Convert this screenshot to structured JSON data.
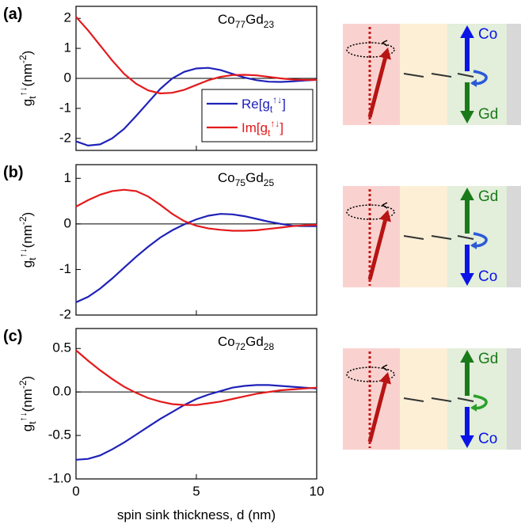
{
  "chart_data": [
    {
      "type": "line",
      "panel": "(a)",
      "annotation": [
        {
          "text": "Co"
        },
        {
          "text": "77",
          "style": "sub"
        },
        {
          "text": "Gd"
        },
        {
          "text": "23",
          "style": "sub"
        }
      ],
      "ylabel": [
        {
          "text": "g"
        },
        {
          "text": "t",
          "style": "sub"
        },
        {
          "text": "↑↓",
          "style": "sup"
        },
        {
          "text": "(nm"
        },
        {
          "text": "-2",
          "style": "sup"
        },
        {
          "text": ")"
        }
      ],
      "xlim": [
        0,
        10
      ],
      "xticks": [
        0,
        5,
        10
      ],
      "show_xtick_labels": false,
      "ylim": [
        -2.4,
        2.4
      ],
      "yticks": [
        -2,
        -1,
        0,
        1,
        2
      ],
      "legend": true,
      "x": [
        0,
        0.5,
        1,
        1.5,
        2,
        2.5,
        3,
        3.5,
        4,
        4.5,
        5,
        5.5,
        6,
        6.5,
        7,
        7.5,
        8,
        8.5,
        9,
        9.5,
        10
      ],
      "series": [
        {
          "name": [
            {
              "text": "Re[g"
            },
            {
              "text": "t",
              "style": "sub"
            },
            {
              "text": "↑↓",
              "style": "sup"
            },
            {
              "text": "]"
            }
          ],
          "color": "#1f22b8",
          "values": [
            -2.1,
            -2.24,
            -2.2,
            -2.0,
            -1.68,
            -1.25,
            -0.8,
            -0.35,
            0.0,
            0.22,
            0.33,
            0.35,
            0.28,
            0.15,
            0.03,
            -0.06,
            -0.11,
            -0.12,
            -0.1,
            -0.07,
            -0.05
          ]
        },
        {
          "name": [
            {
              "text": "Im[g"
            },
            {
              "text": "t",
              "style": "sub"
            },
            {
              "text": "↑↓",
              "style": "sup"
            },
            {
              "text": "]"
            }
          ],
          "color": "#e31a1c",
          "values": [
            2.05,
            1.6,
            1.1,
            0.6,
            0.15,
            -0.18,
            -0.4,
            -0.5,
            -0.48,
            -0.38,
            -0.22,
            -0.06,
            0.05,
            0.11,
            0.12,
            0.1,
            0.05,
            0.0,
            -0.04,
            -0.05,
            -0.05
          ]
        }
      ]
    },
    {
      "type": "line",
      "panel": "(b)",
      "annotation": [
        {
          "text": "Co"
        },
        {
          "text": "75",
          "style": "sub"
        },
        {
          "text": "Gd"
        },
        {
          "text": "25",
          "style": "sub"
        }
      ],
      "ylabel": [
        {
          "text": "g"
        },
        {
          "text": "t",
          "style": "sub"
        },
        {
          "text": "↑↓",
          "style": "sup"
        },
        {
          "text": "(nm"
        },
        {
          "text": "-2",
          "style": "sup"
        },
        {
          "text": ")"
        }
      ],
      "xlim": [
        0,
        10
      ],
      "xticks": [
        0,
        5,
        10
      ],
      "show_xtick_labels": false,
      "ylim": [
        -2,
        1.3
      ],
      "yticks": [
        -2,
        -1,
        0,
        1
      ],
      "legend": false,
      "x": [
        0,
        0.5,
        1,
        1.5,
        2,
        2.5,
        3,
        3.5,
        4,
        4.5,
        5,
        5.5,
        6,
        6.5,
        7,
        7.5,
        8,
        8.5,
        9,
        9.5,
        10
      ],
      "series": [
        {
          "color": "#1f22b8",
          "values": [
            -1.72,
            -1.6,
            -1.42,
            -1.2,
            -0.96,
            -0.72,
            -0.5,
            -0.3,
            -0.14,
            -0.01,
            0.1,
            0.18,
            0.22,
            0.21,
            0.17,
            0.11,
            0.05,
            0.0,
            -0.04,
            -0.05,
            -0.05
          ]
        },
        {
          "color": "#e31a1c",
          "values": [
            0.38,
            0.52,
            0.64,
            0.72,
            0.75,
            0.72,
            0.6,
            0.42,
            0.22,
            0.06,
            -0.04,
            -0.1,
            -0.13,
            -0.15,
            -0.15,
            -0.14,
            -0.11,
            -0.08,
            -0.05,
            -0.03,
            -0.02
          ]
        }
      ]
    },
    {
      "type": "line",
      "panel": "(c)",
      "annotation": [
        {
          "text": "Co"
        },
        {
          "text": "72",
          "style": "sub"
        },
        {
          "text": "Gd"
        },
        {
          "text": "28",
          "style": "sub"
        }
      ],
      "ylabel": [
        {
          "text": "g"
        },
        {
          "text": "t",
          "style": "sub"
        },
        {
          "text": "↑↓",
          "style": "sup"
        },
        {
          "text": "(nm"
        },
        {
          "text": "-2",
          "style": "sup"
        },
        {
          "text": ")"
        }
      ],
      "xlabel": "spin sink thickness, d (nm)",
      "xlim": [
        0,
        10
      ],
      "xticks": [
        0,
        5,
        10
      ],
      "show_xtick_labels": true,
      "ylim": [
        -1,
        0.73
      ],
      "yticks": [
        {
          "value": -1,
          "label": "-1.0"
        },
        -0.5,
        {
          "value": 0,
          "label": "0.0"
        },
        0.5
      ],
      "legend": false,
      "x": [
        0,
        0.5,
        1,
        1.5,
        2,
        2.5,
        3,
        3.5,
        4,
        4.5,
        5,
        5.5,
        6,
        6.5,
        7,
        7.5,
        8,
        8.5,
        9,
        9.5,
        10
      ],
      "series": [
        {
          "color": "#1f22b8",
          "values": [
            -0.78,
            -0.77,
            -0.73,
            -0.66,
            -0.58,
            -0.49,
            -0.4,
            -0.31,
            -0.23,
            -0.15,
            -0.08,
            -0.03,
            0.01,
            0.05,
            0.07,
            0.08,
            0.08,
            0.07,
            0.06,
            0.05,
            0.04
          ]
        },
        {
          "color": "#e31a1c",
          "values": [
            0.48,
            0.36,
            0.25,
            0.15,
            0.06,
            -0.01,
            -0.07,
            -0.11,
            -0.14,
            -0.15,
            -0.15,
            -0.13,
            -0.11,
            -0.08,
            -0.05,
            -0.02,
            0.0,
            0.02,
            0.03,
            0.04,
            0.05
          ]
        }
      ]
    }
  ],
  "diagrams": [
    {
      "top": {
        "text": "Co",
        "color": "#0a14e6"
      },
      "bottom": {
        "text": "Gd",
        "color": "#1a7a1a"
      },
      "curl_color": "#2a5ad8"
    },
    {
      "top": {
        "text": "Gd",
        "color": "#1a7a1a"
      },
      "bottom": {
        "text": "Co",
        "color": "#0a14e6"
      },
      "curl_color": "#2a5ad8"
    },
    {
      "top": {
        "text": "Gd",
        "color": "#1a7a1a"
      },
      "bottom": {
        "text": "Co",
        "color": "#0a14e6"
      },
      "curl_color": "#2aa02a"
    }
  ]
}
